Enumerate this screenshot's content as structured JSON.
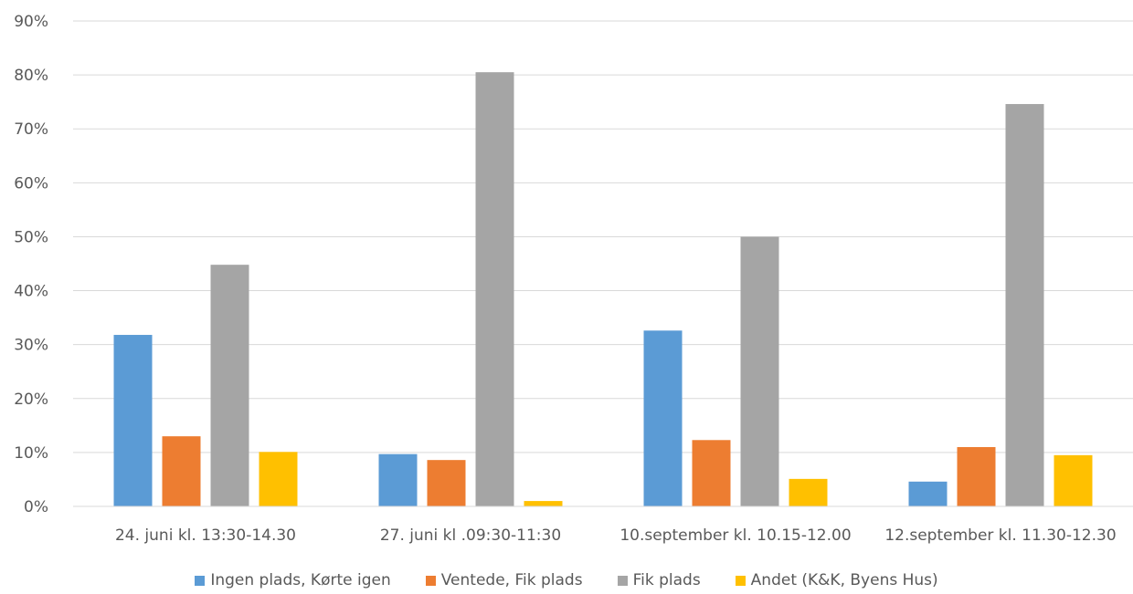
{
  "chart_data": {
    "type": "bar",
    "title": "",
    "xlabel": "",
    "ylabel": "",
    "ylim": [
      0,
      90
    ],
    "yticks": [
      "0%",
      "10%",
      "20%",
      "30%",
      "40%",
      "50%",
      "60%",
      "70%",
      "80%",
      "90%"
    ],
    "categories": [
      "24. juni kl. 13:30-14.30",
      "27. juni kl .09:30-11:30",
      "10.september kl. 10.15-12.00",
      "12.september kl. 11.30-12.30"
    ],
    "series": [
      {
        "name": "Ingen plads, Kørte igen",
        "color": "#5B9BD5",
        "values": [
          31.8,
          9.7,
          32.6,
          4.6
        ]
      },
      {
        "name": "Ventede, Fik plads",
        "color": "#ED7D31",
        "values": [
          13.0,
          8.6,
          12.3,
          11.0
        ]
      },
      {
        "name": "Fik plads",
        "color": "#A5A5A5",
        "values": [
          44.8,
          80.5,
          50.0,
          74.6
        ]
      },
      {
        "name": "Andet (K&K, Byens Hus)",
        "color": "#FFC000",
        "values": [
          10.1,
          1.0,
          5.1,
          9.5
        ]
      }
    ],
    "grid": true,
    "legend": "bottom"
  }
}
